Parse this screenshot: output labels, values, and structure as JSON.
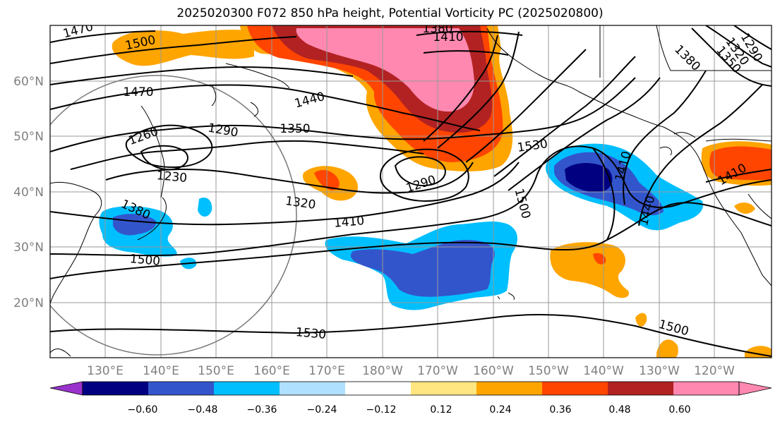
{
  "title": "2025020300 F072 850 hPa height, Potential Vorticity PC (2025020800)",
  "lat_labels": [
    "60°N",
    "50°N",
    "40°N",
    "30°N",
    "20°N"
  ],
  "lon_labels": [
    "130°E",
    "140°E",
    "150°E",
    "160°E",
    "170°E",
    "180°W",
    "170°W",
    "160°W",
    "150°W",
    "140°W",
    "130°W",
    "120°W"
  ],
  "contour_labels": [
    "1470",
    "1500",
    "1380",
    "1410",
    "1290",
    "1320",
    "1350",
    "1380",
    "1470",
    "1440",
    "1260",
    "1290",
    "1350",
    "1530",
    "1230",
    "1410",
    "1290",
    "1320",
    "1380",
    "1500",
    "1440",
    "1410",
    "1410",
    "1500",
    "1530",
    "1500"
  ],
  "colorbar": {
    "ticks": [
      "−0.60",
      "−0.48",
      "−0.36",
      "−0.24",
      "−0.12",
      "0.12",
      "0.24",
      "0.36",
      "0.48",
      "0.60"
    ],
    "colors": [
      "#9933cc",
      "#000080",
      "#3355cc",
      "#00bfff",
      "#b0e0ff",
      "#ffffff",
      "#ffe680",
      "#ffa500",
      "#ff4500",
      "#b22222",
      "#ff88b0",
      "#ff88b0"
    ]
  }
}
